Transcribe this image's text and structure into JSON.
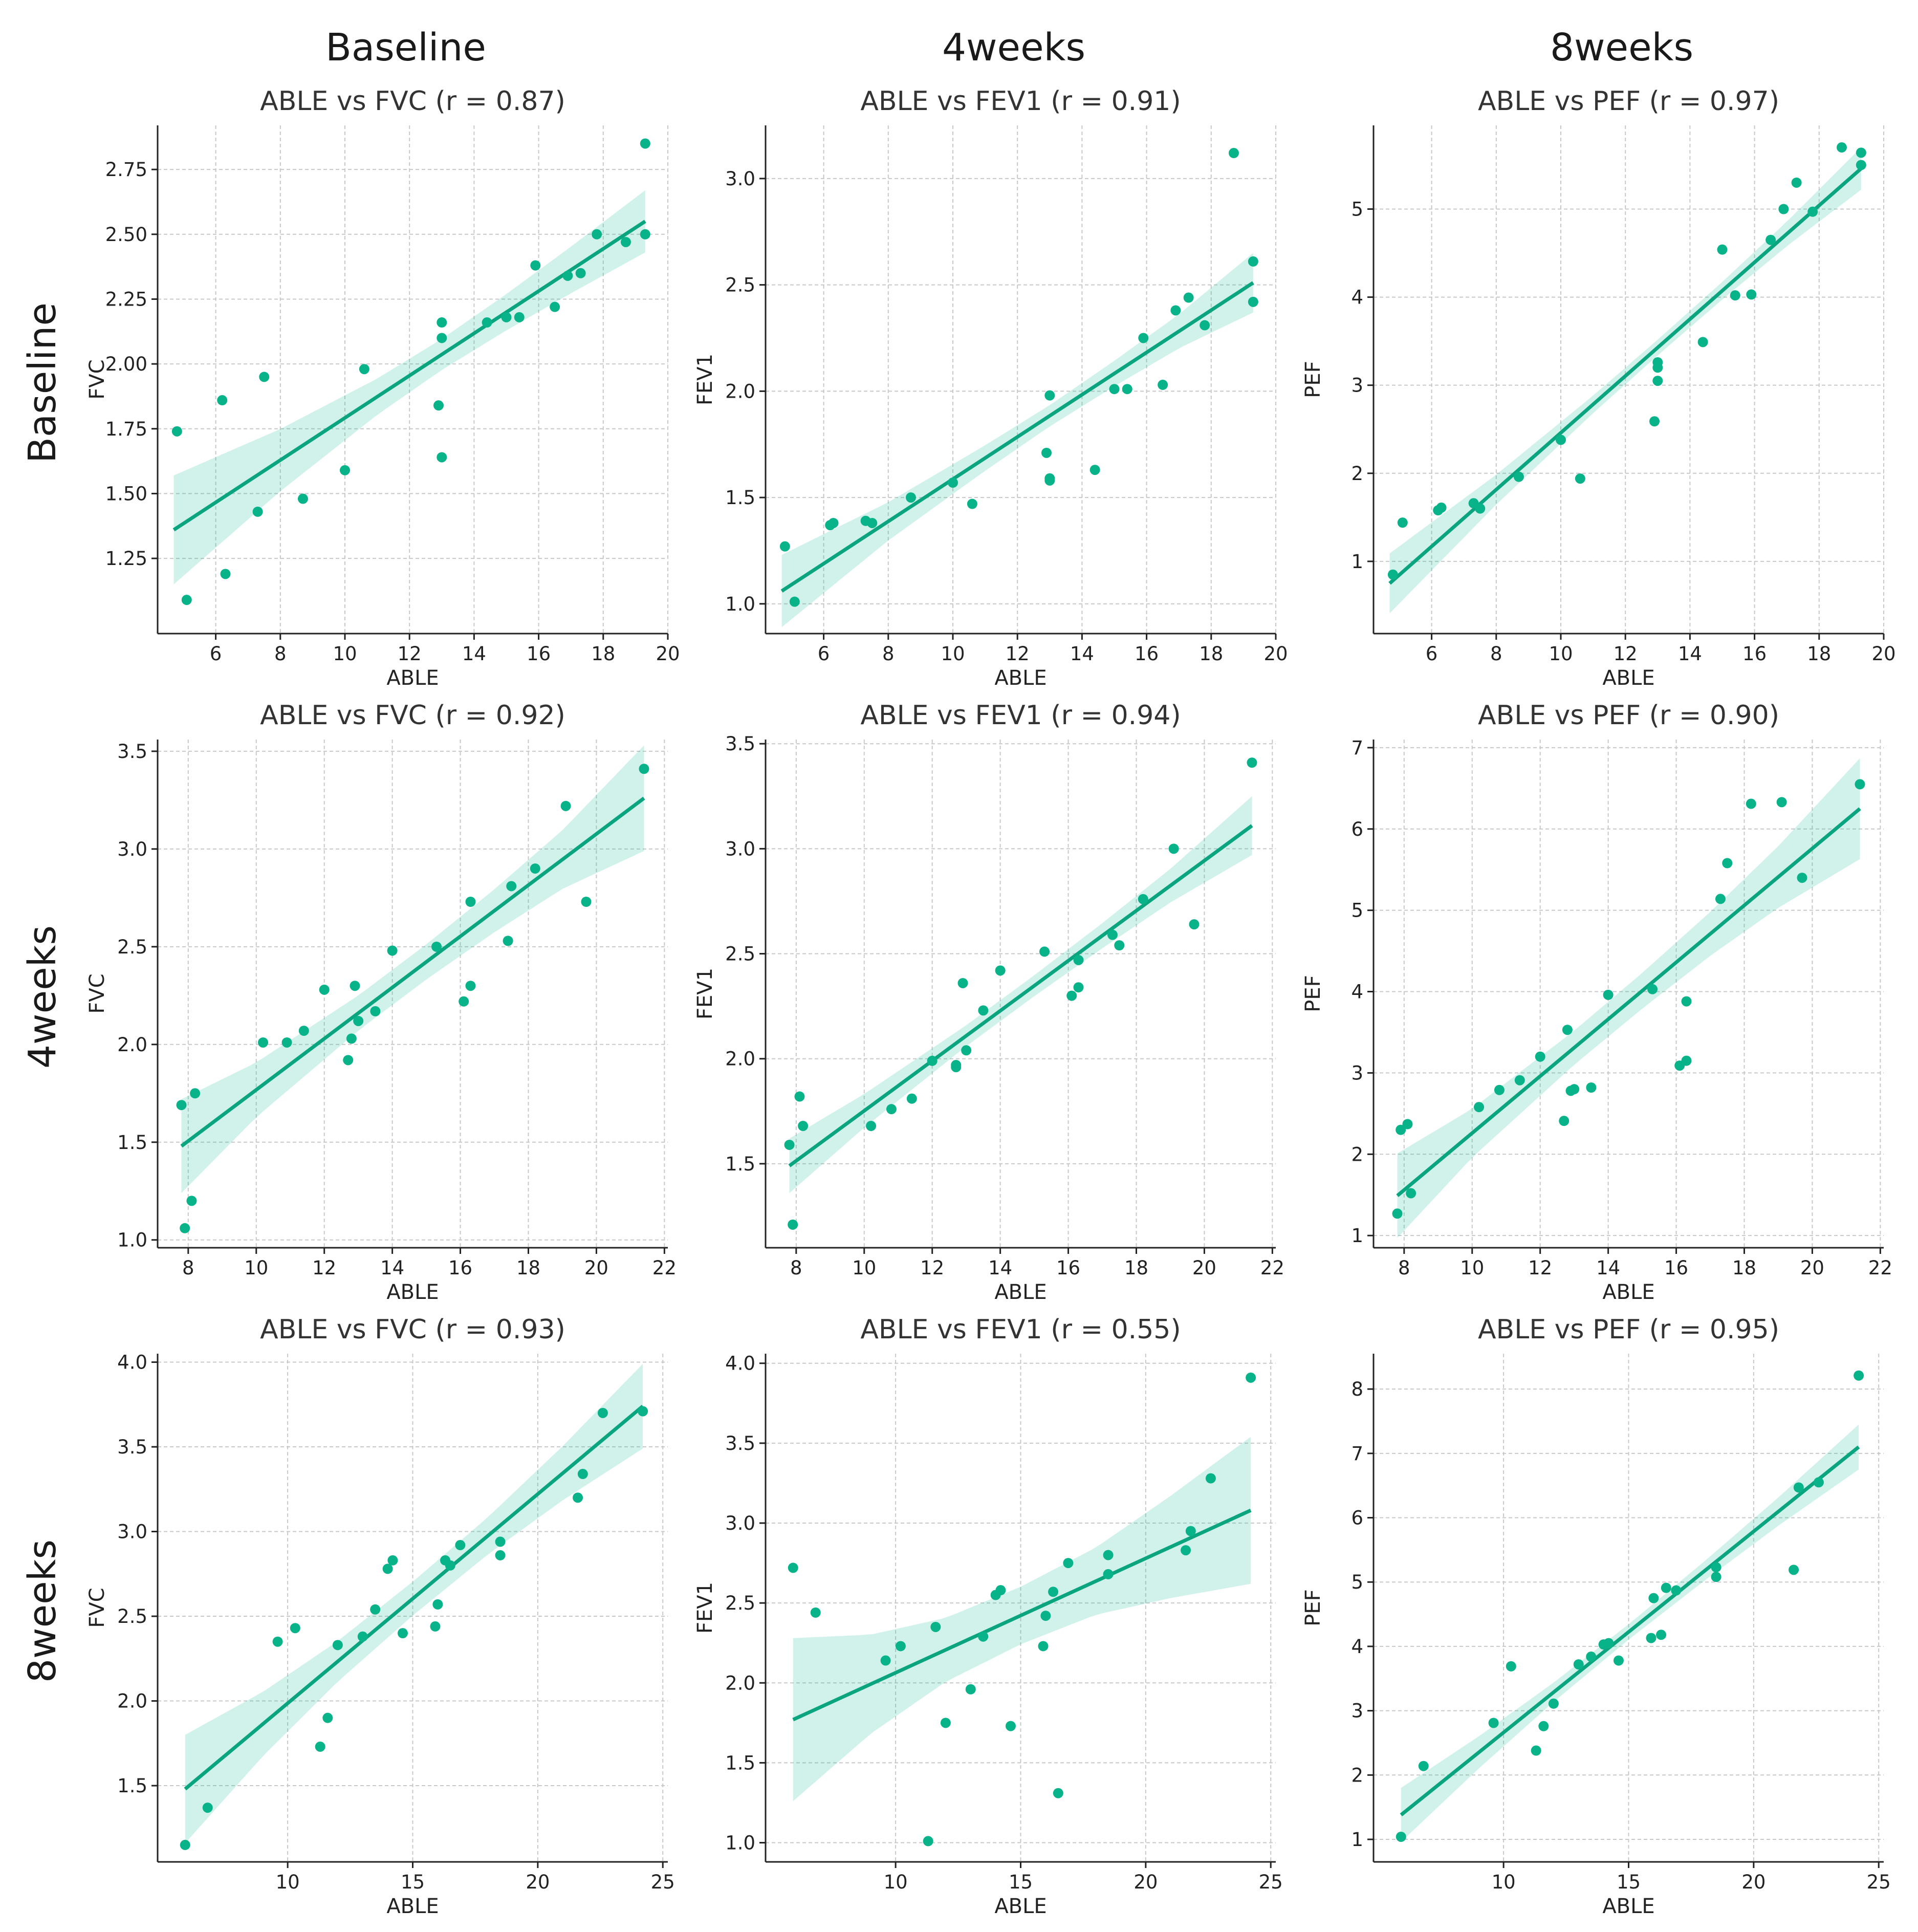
{
  "figure": {
    "column_headers": [
      "Baseline",
      "4weeks",
      "8weeks"
    ],
    "row_headers": [
      "Baseline",
      "4weeks",
      "8weeks"
    ],
    "colors": {
      "point": "#09b38a",
      "line": "#0aa57f",
      "band": "#1abc9c"
    }
  },
  "chart_data": [
    {
      "type": "scatter",
      "title": "ABLE vs FVC (r = 0.87)",
      "xlabel": "ABLE",
      "ylabel": "FVC",
      "xlim": [
        4.2,
        20.0
      ],
      "ylim": [
        0.96,
        2.92
      ],
      "xticks": [
        6,
        8,
        10,
        12,
        14,
        16,
        18,
        20
      ],
      "yticks": [
        1.25,
        1.5,
        1.75,
        2.0,
        2.25,
        2.5,
        2.75
      ],
      "ytick_labels": [
        "1.25",
        "1.50",
        "1.75",
        "2.00",
        "2.25",
        "2.50",
        "2.75"
      ],
      "x": [
        4.8,
        5.1,
        6.2,
        6.3,
        7.3,
        7.5,
        8.7,
        10.0,
        10.6,
        12.9,
        13.0,
        13.0,
        13.0,
        14.4,
        15.0,
        15.4,
        15.9,
        16.5,
        16.9,
        17.3,
        17.8,
        18.7,
        19.3,
        19.3
      ],
      "y": [
        1.74,
        1.09,
        1.86,
        1.19,
        1.43,
        1.95,
        1.48,
        1.59,
        1.98,
        1.84,
        1.64,
        2.16,
        2.1,
        2.16,
        2.18,
        2.18,
        2.38,
        2.22,
        2.34,
        2.35,
        2.5,
        2.47,
        2.5,
        2.85
      ],
      "fit": {
        "x0": 4.7,
        "y0": 1.36,
        "x1": 19.3,
        "y1": 2.55
      },
      "band_half_width": {
        "x": [
          4.7,
          8,
          11,
          13,
          15,
          17,
          19.3
        ],
        "h": [
          0.21,
          0.12,
          0.07,
          0.06,
          0.07,
          0.09,
          0.12
        ]
      }
    },
    {
      "type": "scatter",
      "title": "ABLE vs FEV1 (r = 0.91)",
      "xlabel": "ABLE",
      "ylabel": "FEV1",
      "xlim": [
        4.2,
        20.0
      ],
      "ylim": [
        0.86,
        3.25
      ],
      "xticks": [
        6,
        8,
        10,
        12,
        14,
        16,
        18,
        20
      ],
      "yticks": [
        1.0,
        1.5,
        2.0,
        2.5,
        3.0
      ],
      "ytick_labels": [
        "1.0",
        "1.5",
        "2.0",
        "2.5",
        "3.0"
      ],
      "x": [
        4.8,
        5.1,
        6.2,
        6.3,
        7.3,
        7.5,
        8.7,
        10.0,
        10.6,
        12.9,
        13.0,
        13.0,
        13.0,
        14.4,
        15.0,
        15.4,
        15.9,
        16.5,
        16.9,
        17.3,
        17.8,
        18.7,
        19.3,
        19.3
      ],
      "y": [
        1.27,
        1.01,
        1.37,
        1.38,
        1.39,
        1.38,
        1.5,
        1.57,
        1.47,
        1.71,
        1.59,
        1.98,
        1.58,
        1.63,
        2.01,
        2.01,
        2.25,
        2.03,
        2.38,
        2.44,
        2.31,
        3.12,
        2.42,
        2.61
      ],
      "fit": {
        "x0": 4.7,
        "y0": 1.06,
        "x1": 19.3,
        "y1": 2.51
      },
      "band_half_width": {
        "x": [
          4.7,
          8,
          11,
          13,
          15,
          17,
          19.3
        ],
        "h": [
          0.17,
          0.09,
          0.06,
          0.05,
          0.06,
          0.08,
          0.14
        ]
      }
    },
    {
      "type": "scatter",
      "title": "ABLE vs PEF (r = 0.97)",
      "xlabel": "ABLE",
      "ylabel": "PEF",
      "xlim": [
        4.2,
        20.0
      ],
      "ylim": [
        0.18,
        5.95
      ],
      "xticks": [
        6,
        8,
        10,
        12,
        14,
        16,
        18,
        20
      ],
      "yticks": [
        1,
        2,
        3,
        4,
        5
      ],
      "ytick_labels": [
        "1",
        "2",
        "3",
        "4",
        "5"
      ],
      "x": [
        4.8,
        5.1,
        6.2,
        6.3,
        7.3,
        7.5,
        8.7,
        10.0,
        10.6,
        12.9,
        13.0,
        13.0,
        13.0,
        14.4,
        15.0,
        15.4,
        15.9,
        16.5,
        16.9,
        17.3,
        17.8,
        18.7,
        19.3,
        19.3
      ],
      "y": [
        0.85,
        1.44,
        1.58,
        1.61,
        1.66,
        1.6,
        1.96,
        2.38,
        1.94,
        2.59,
        3.05,
        3.26,
        3.2,
        3.49,
        4.54,
        4.02,
        4.03,
        4.65,
        5.0,
        5.3,
        4.97,
        5.7,
        5.5,
        5.64
      ],
      "fit": {
        "x0": 4.7,
        "y0": 0.75,
        "x1": 19.3,
        "y1": 5.46
      },
      "band_half_width": {
        "x": [
          4.7,
          8,
          11,
          13,
          15,
          17,
          19.3
        ],
        "h": [
          0.34,
          0.17,
          0.1,
          0.09,
          0.1,
          0.14,
          0.24
        ]
      }
    },
    {
      "type": "scatter",
      "title": "ABLE vs FVC (r = 0.92)",
      "xlabel": "ABLE",
      "ylabel": "FVC",
      "xlim": [
        7.1,
        22.1
      ],
      "ylim": [
        0.96,
        3.56
      ],
      "xticks": [
        8,
        10,
        12,
        14,
        16,
        18,
        20,
        22
      ],
      "yticks": [
        1.0,
        1.5,
        2.0,
        2.5,
        3.0,
        3.5
      ],
      "ytick_labels": [
        "1.0",
        "1.5",
        "2.0",
        "2.5",
        "3.0",
        "3.5"
      ],
      "x": [
        7.8,
        7.9,
        8.1,
        8.2,
        10.2,
        10.9,
        11.4,
        12.0,
        12.7,
        12.8,
        12.9,
        13.0,
        13.5,
        14.0,
        15.3,
        16.1,
        16.3,
        16.3,
        17.4,
        17.5,
        18.2,
        19.1,
        19.7,
        21.4
      ],
      "y": [
        1.69,
        1.06,
        1.2,
        1.75,
        2.01,
        2.01,
        2.07,
        2.28,
        1.92,
        2.03,
        2.3,
        2.12,
        2.17,
        2.48,
        2.5,
        2.22,
        2.3,
        2.73,
        2.53,
        2.81,
        2.9,
        3.22,
        2.73,
        3.41
      ],
      "fit": {
        "x0": 7.8,
        "y0": 1.48,
        "x1": 21.4,
        "y1": 3.26
      },
      "band_half_width": {
        "x": [
          7.8,
          10,
          13,
          15,
          17,
          19,
          21.4
        ],
        "h": [
          0.24,
          0.14,
          0.09,
          0.09,
          0.11,
          0.15,
          0.27
        ]
      }
    },
    {
      "type": "scatter",
      "title": "ABLE vs FEV1 (r = 0.94)",
      "xlabel": "ABLE",
      "ylabel": "FEV1",
      "xlim": [
        7.1,
        22.1
      ],
      "ylim": [
        1.1,
        3.52
      ],
      "xticks": [
        8,
        10,
        12,
        14,
        16,
        18,
        20,
        22
      ],
      "yticks": [
        1.5,
        2.0,
        2.5,
        3.0,
        3.5
      ],
      "ytick_labels": [
        "1.5",
        "2.0",
        "2.5",
        "3.0",
        "3.5"
      ],
      "x": [
        7.8,
        7.9,
        8.1,
        8.2,
        10.2,
        10.8,
        11.4,
        12.0,
        12.7,
        12.7,
        12.9,
        13.0,
        13.5,
        14.0,
        15.3,
        16.1,
        16.3,
        16.3,
        17.3,
        17.5,
        18.2,
        19.1,
        19.7,
        21.4
      ],
      "y": [
        1.59,
        1.21,
        1.82,
        1.68,
        1.68,
        1.76,
        1.81,
        1.99,
        1.96,
        1.97,
        2.36,
        2.04,
        2.23,
        2.42,
        2.51,
        2.3,
        2.34,
        2.47,
        2.59,
        2.54,
        2.76,
        3.0,
        2.64,
        3.41
      ],
      "fit": {
        "x0": 7.8,
        "y0": 1.49,
        "x1": 21.4,
        "y1": 3.11
      },
      "band_half_width": {
        "x": [
          7.8,
          10,
          13,
          15,
          17,
          19,
          21.4
        ],
        "h": [
          0.13,
          0.08,
          0.05,
          0.05,
          0.06,
          0.08,
          0.14
        ]
      }
    },
    {
      "type": "scatter",
      "title": "ABLE vs PEF (r = 0.90)",
      "xlabel": "ABLE",
      "ylabel": "PEF",
      "xlim": [
        7.1,
        22.1
      ],
      "ylim": [
        0.85,
        7.1
      ],
      "xticks": [
        8,
        10,
        12,
        14,
        16,
        18,
        20,
        22
      ],
      "yticks": [
        1,
        2,
        3,
        4,
        5,
        6,
        7
      ],
      "ytick_labels": [
        "1",
        "2",
        "3",
        "4",
        "5",
        "6",
        "7"
      ],
      "x": [
        7.8,
        7.9,
        8.1,
        8.2,
        10.2,
        10.8,
        11.4,
        12.0,
        12.7,
        12.8,
        12.9,
        13.0,
        13.5,
        14.0,
        15.3,
        16.1,
        16.3,
        16.3,
        17.3,
        17.5,
        18.2,
        19.1,
        19.7,
        21.4
      ],
      "y": [
        1.27,
        2.3,
        2.37,
        1.52,
        2.58,
        2.79,
        2.91,
        3.2,
        2.41,
        3.53,
        2.78,
        2.8,
        2.82,
        3.96,
        4.03,
        3.09,
        3.15,
        3.88,
        5.14,
        5.58,
        6.31,
        6.33,
        5.4,
        6.55
      ],
      "fit": {
        "x0": 7.8,
        "y0": 1.49,
        "x1": 21.4,
        "y1": 6.25
      },
      "band_half_width": {
        "x": [
          7.8,
          10,
          13,
          15,
          17,
          19,
          21.4
        ],
        "h": [
          0.52,
          0.3,
          0.21,
          0.22,
          0.27,
          0.38,
          0.62
        ]
      }
    },
    {
      "type": "scatter",
      "title": "ABLE vs FVC (r = 0.93)",
      "xlabel": "ABLE",
      "ylabel": "FVC",
      "xlim": [
        4.8,
        25.2
      ],
      "ylim": [
        1.05,
        4.05
      ],
      "xticks": [
        10,
        15,
        20,
        25
      ],
      "yticks": [
        1.5,
        2.0,
        2.5,
        3.0,
        3.5,
        4.0
      ],
      "ytick_labels": [
        "1.5",
        "2.0",
        "2.5",
        "3.0",
        "3.5",
        "4.0"
      ],
      "x": [
        5.9,
        6.8,
        9.6,
        10.3,
        11.3,
        11.6,
        12.0,
        13.0,
        13.5,
        14.0,
        14.2,
        14.6,
        15.9,
        16.0,
        16.3,
        16.5,
        16.9,
        18.5,
        18.5,
        21.6,
        21.8,
        22.6,
        24.2
      ],
      "y": [
        1.15,
        1.37,
        2.35,
        2.43,
        1.73,
        1.9,
        2.33,
        2.38,
        2.54,
        2.78,
        2.83,
        2.4,
        2.44,
        2.57,
        2.83,
        2.8,
        2.92,
        2.86,
        2.94,
        3.2,
        3.34,
        3.7,
        3.71
      ],
      "fit": {
        "x0": 5.9,
        "y0": 1.48,
        "x1": 24.2,
        "y1": 3.74
      },
      "band_half_width": {
        "x": [
          5.9,
          9,
          12,
          15,
          18,
          21,
          24.2
        ],
        "h": [
          0.32,
          0.19,
          0.12,
          0.1,
          0.11,
          0.16,
          0.25
        ]
      }
    },
    {
      "type": "scatter",
      "title": "ABLE vs FEV1 (r = 0.55)",
      "xlabel": "ABLE",
      "ylabel": "FEV1",
      "xlim": [
        4.8,
        25.2
      ],
      "ylim": [
        0.88,
        4.06
      ],
      "xticks": [
        10,
        15,
        20,
        25
      ],
      "yticks": [
        1.0,
        1.5,
        2.0,
        2.5,
        3.0,
        3.5,
        4.0
      ],
      "ytick_labels": [
        "1.0",
        "1.5",
        "2.0",
        "2.5",
        "3.0",
        "3.5",
        "4.0"
      ],
      "x": [
        5.9,
        6.8,
        9.6,
        10.2,
        11.3,
        11.6,
        12.0,
        13.0,
        13.5,
        14.0,
        14.2,
        14.6,
        15.9,
        16.0,
        16.3,
        16.5,
        16.9,
        18.5,
        18.5,
        21.6,
        21.8,
        22.6,
        24.2
      ],
      "y": [
        2.72,
        2.44,
        2.14,
        2.23,
        1.01,
        2.35,
        1.75,
        1.96,
        2.29,
        2.55,
        2.58,
        1.73,
        2.23,
        2.42,
        2.57,
        1.31,
        2.75,
        2.68,
        2.8,
        2.83,
        2.95,
        3.28,
        3.91
      ],
      "fit": {
        "x0": 5.9,
        "y0": 1.77,
        "x1": 24.2,
        "y1": 3.08
      },
      "band_half_width": {
        "x": [
          5.9,
          9,
          12,
          15,
          18,
          21,
          24.2
        ],
        "h": [
          0.51,
          0.31,
          0.2,
          0.18,
          0.21,
          0.32,
          0.46
        ]
      }
    },
    {
      "type": "scatter",
      "title": "ABLE vs PEF (r = 0.95)",
      "xlabel": "ABLE",
      "ylabel": "PEF",
      "xlim": [
        4.8,
        25.2
      ],
      "ylim": [
        0.65,
        8.55
      ],
      "xticks": [
        10,
        15,
        20,
        25
      ],
      "yticks": [
        1,
        2,
        3,
        4,
        5,
        6,
        7,
        8
      ],
      "ytick_labels": [
        "1",
        "2",
        "3",
        "4",
        "5",
        "6",
        "7",
        "8"
      ],
      "x": [
        5.9,
        6.8,
        9.6,
        10.3,
        11.3,
        11.6,
        12.0,
        13.0,
        13.5,
        14.0,
        14.2,
        14.6,
        15.9,
        16.0,
        16.3,
        16.5,
        16.9,
        18.5,
        18.5,
        21.6,
        21.8,
        22.6,
        24.2
      ],
      "y": [
        1.04,
        2.14,
        2.81,
        3.69,
        2.38,
        2.76,
        3.11,
        3.72,
        3.84,
        4.03,
        4.05,
        3.78,
        4.13,
        4.75,
        4.18,
        4.91,
        4.87,
        5.08,
        5.23,
        5.19,
        6.47,
        6.55,
        8.21
      ],
      "fit": {
        "x0": 5.9,
        "y0": 1.38,
        "x1": 24.2,
        "y1": 7.1
      },
      "band_half_width": {
        "x": [
          5.9,
          9,
          12,
          15,
          18,
          21,
          24.2
        ],
        "h": [
          0.42,
          0.25,
          0.15,
          0.12,
          0.15,
          0.22,
          0.35
        ]
      }
    }
  ]
}
